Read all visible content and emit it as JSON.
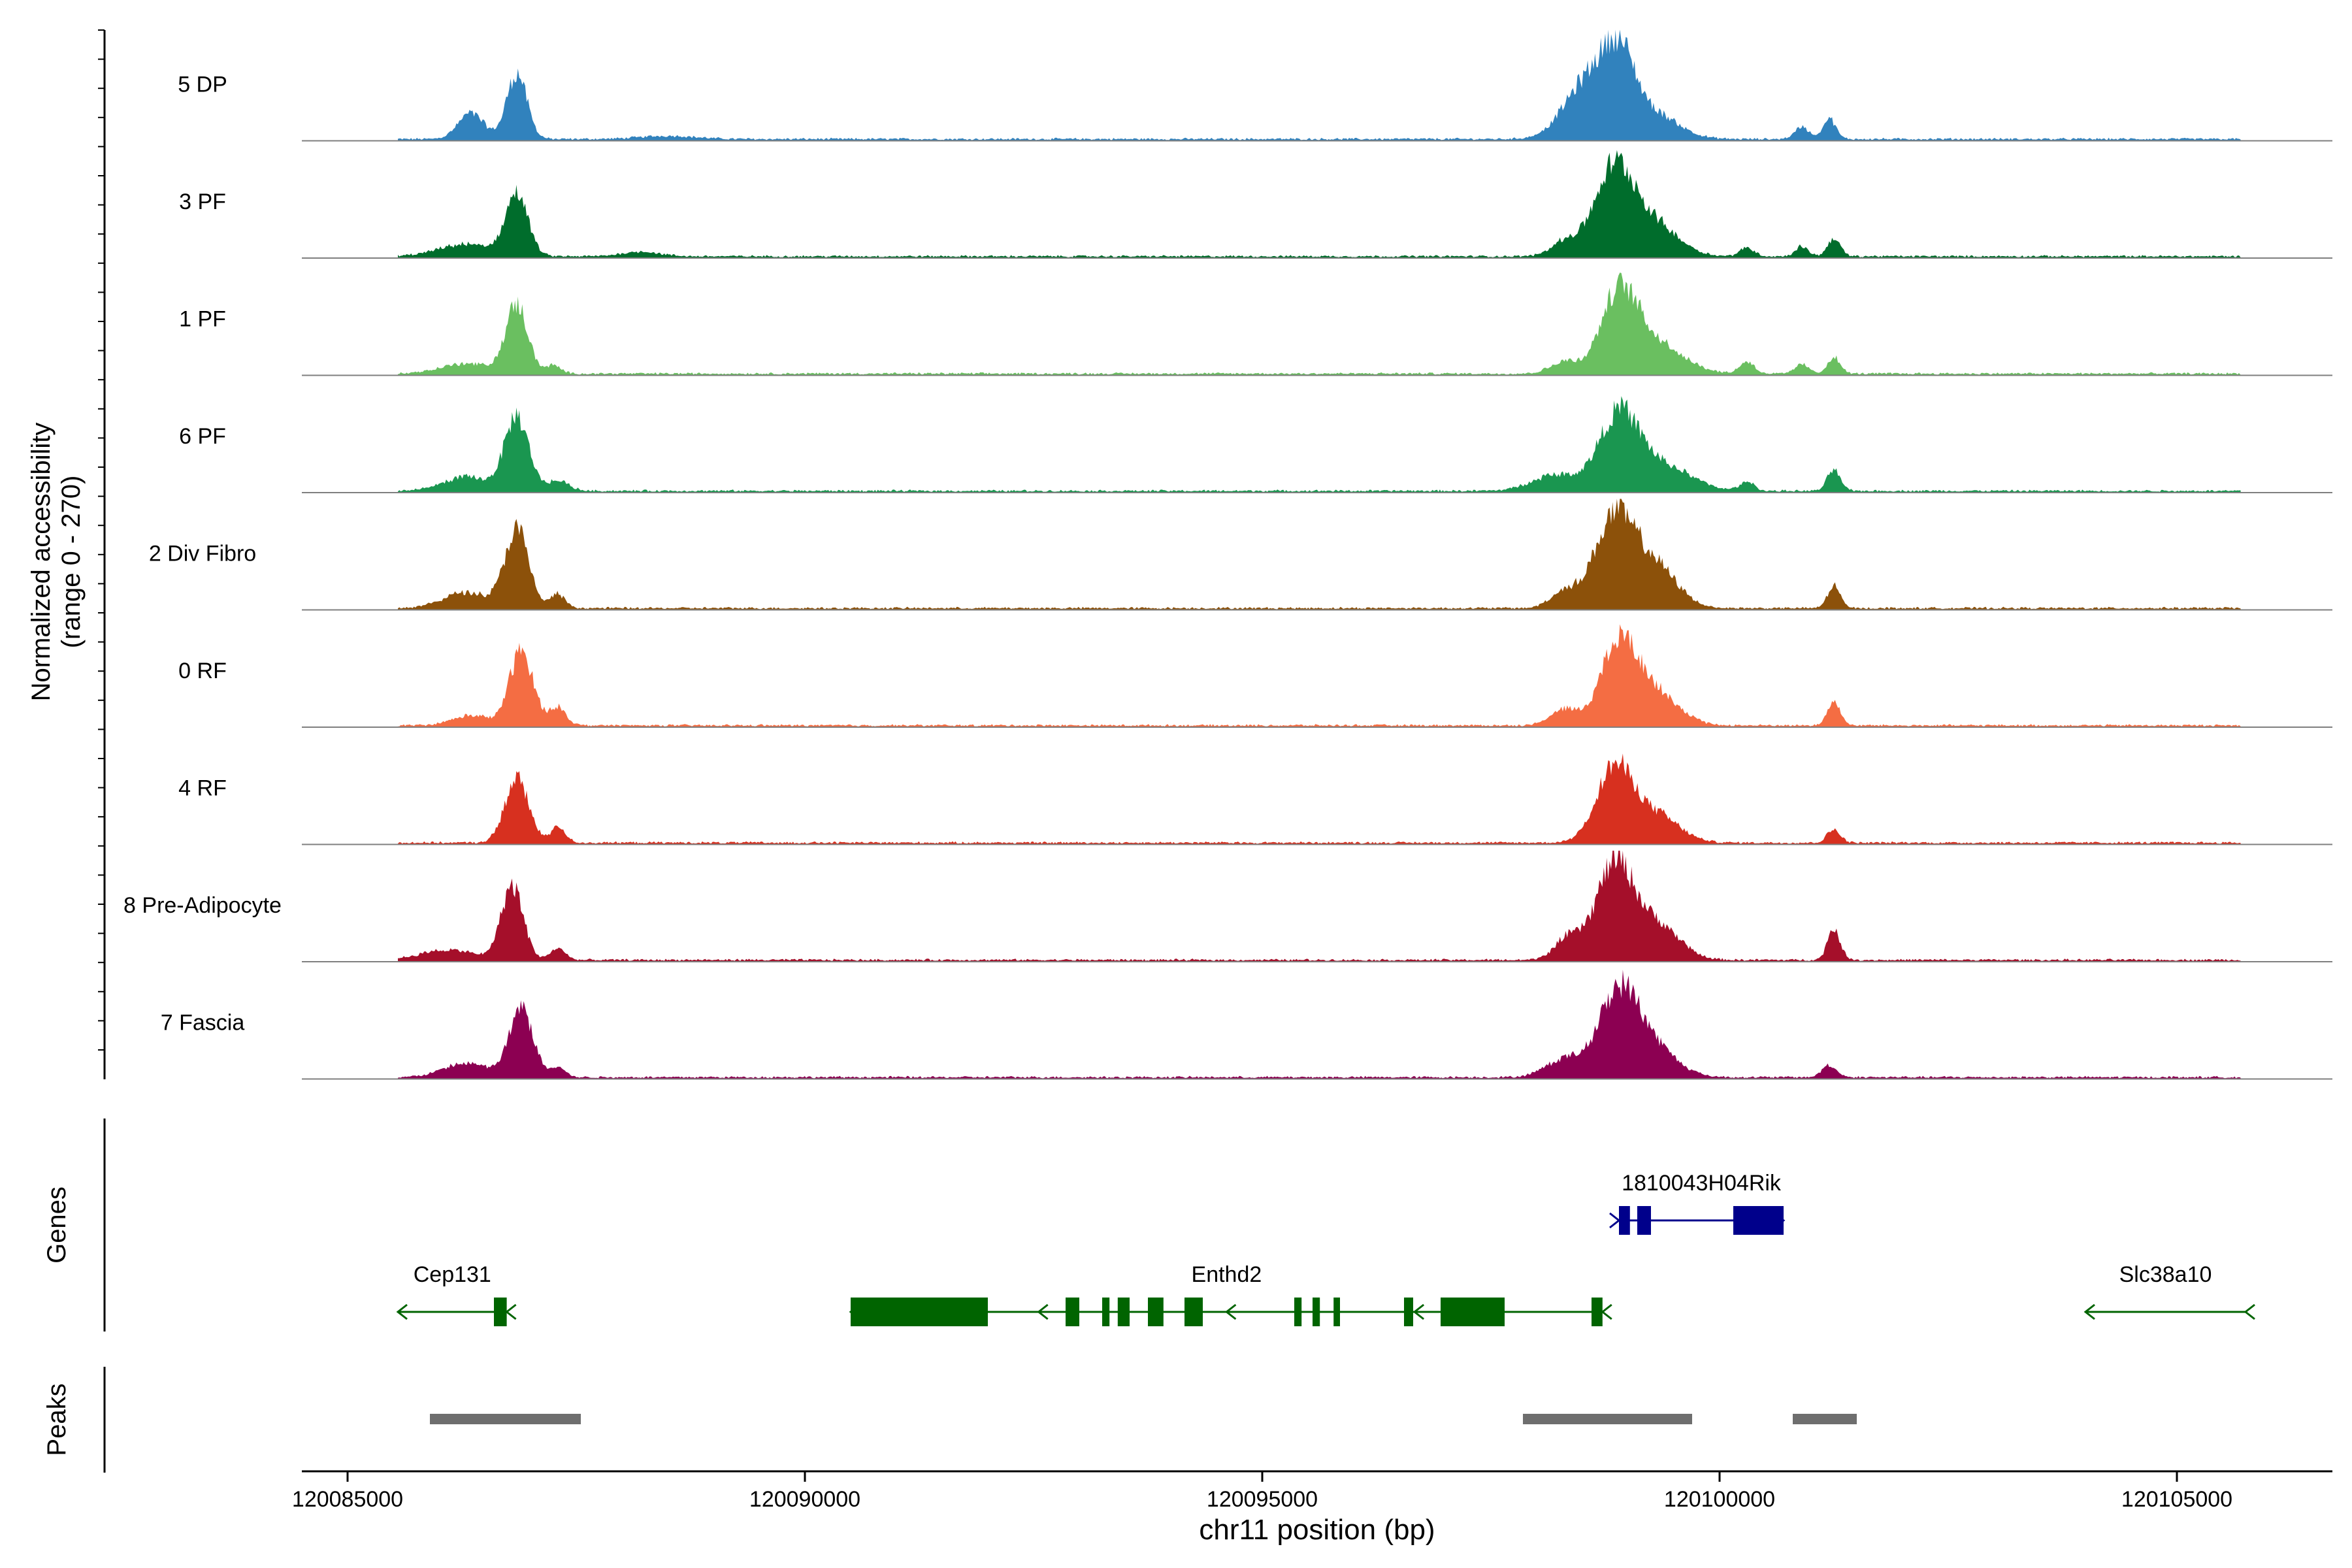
{
  "chart_data": {
    "type": "area",
    "title": "",
    "region": "chr11",
    "xlabel": "chr11 position (bp)",
    "ylabel_line1": "Normalized accessibility",
    "ylabel_line2": "(range 0 - 270)",
    "ylim": [
      0,
      270
    ],
    "xlim": [
      120084500,
      120106700
    ],
    "x_ticks": [
      "120085000",
      "120090000",
      "120095000",
      "120100000",
      "120105000"
    ],
    "tracks": [
      {
        "name": "5 DP",
        "color": "#3182bd",
        "peaks": [
          [
            120086350,
            65,
            140
          ],
          [
            120086850,
            165,
            110
          ],
          [
            120088500,
            8,
            300
          ],
          [
            120098550,
            140,
            250
          ],
          [
            120098900,
            185,
            180
          ],
          [
            120099300,
            60,
            260
          ],
          [
            120100900,
            30,
            80
          ],
          [
            120101200,
            50,
            70
          ]
        ]
      },
      {
        "name": "3 PF",
        "color": "#006d2c",
        "peaks": [
          [
            120086300,
            30,
            300
          ],
          [
            120086850,
            155,
            120
          ],
          [
            120088200,
            12,
            200
          ],
          [
            120098300,
            35,
            150
          ],
          [
            120098850,
            220,
            220
          ],
          [
            120099300,
            75,
            260
          ],
          [
            120100300,
            22,
            80
          ],
          [
            120100900,
            25,
            70
          ],
          [
            120101250,
            45,
            70
          ]
        ]
      },
      {
        "name": "1 PF",
        "color": "#6abf60",
        "peaks": [
          [
            120086300,
            25,
            280
          ],
          [
            120086850,
            170,
            120
          ],
          [
            120087250,
            20,
            80
          ],
          [
            120098300,
            30,
            150
          ],
          [
            120098900,
            190,
            200
          ],
          [
            120099300,
            75,
            300
          ],
          [
            120100300,
            30,
            80
          ],
          [
            120100900,
            25,
            70
          ],
          [
            120101250,
            40,
            70
          ]
        ]
      },
      {
        "name": "6 PF",
        "color": "#1a9650",
        "peaks": [
          [
            120086300,
            35,
            250
          ],
          [
            120086850,
            185,
            130
          ],
          [
            120087300,
            25,
            120
          ],
          [
            120098200,
            40,
            250
          ],
          [
            120098900,
            190,
            220
          ],
          [
            120099400,
            60,
            300
          ],
          [
            120100300,
            22,
            80
          ],
          [
            120101250,
            55,
            70
          ]
        ]
      },
      {
        "name": "2 Div Fibro",
        "color": "#8c510a",
        "peaks": [
          [
            120086300,
            40,
            250
          ],
          [
            120086850,
            195,
            130
          ],
          [
            120087300,
            35,
            80
          ],
          [
            120098300,
            40,
            150
          ],
          [
            120098850,
            225,
            220
          ],
          [
            120099300,
            100,
            240
          ],
          [
            120101250,
            55,
            70
          ]
        ]
      },
      {
        "name": "0 RF",
        "color": "#f46d43",
        "peaks": [
          [
            120086350,
            25,
            200
          ],
          [
            120086900,
            185,
            130
          ],
          [
            120087300,
            45,
            90
          ],
          [
            120098300,
            40,
            150
          ],
          [
            120098900,
            200,
            200
          ],
          [
            120099300,
            80,
            250
          ],
          [
            120101250,
            60,
            70
          ]
        ]
      },
      {
        "name": "4 RF",
        "color": "#d7301f",
        "peaks": [
          [
            120086850,
            160,
            130
          ],
          [
            120087300,
            40,
            80
          ],
          [
            120098850,
            185,
            200
          ],
          [
            120099300,
            70,
            250
          ],
          [
            120101250,
            35,
            70
          ]
        ]
      },
      {
        "name": "8 Pre-Adipocyte",
        "color": "#a50f2a",
        "peaks": [
          [
            120086100,
            25,
            300
          ],
          [
            120086800,
            185,
            120
          ],
          [
            120087300,
            30,
            80
          ],
          [
            120098350,
            55,
            150
          ],
          [
            120098850,
            235,
            200
          ],
          [
            120099300,
            90,
            250
          ],
          [
            120101250,
            75,
            70
          ]
        ]
      },
      {
        "name": "7 Fascia",
        "color": "#8c0052",
        "peaks": [
          [
            120086300,
            35,
            250
          ],
          [
            120086900,
            170,
            130
          ],
          [
            120087300,
            25,
            80
          ],
          [
            120098300,
            45,
            200
          ],
          [
            120098900,
            215,
            220
          ],
          [
            120099300,
            65,
            250
          ],
          [
            120101200,
            30,
            80
          ]
        ]
      }
    ],
    "genes_label": "Genes",
    "genes": [
      {
        "name": "Cep131",
        "color": "#006400",
        "strand": "-",
        "start": 120085550,
        "end": 120086740,
        "exons": [
          [
            120086600,
            120086740
          ]
        ]
      },
      {
        "name": "Enthd2",
        "color": "#006400",
        "strand": "-",
        "start": 120090500,
        "end": 120098720,
        "exons": [
          [
            120090500,
            120092000
          ],
          [
            120092850,
            120093000
          ],
          [
            120093250,
            120093330
          ],
          [
            120093420,
            120093550
          ],
          [
            120093750,
            120093920
          ],
          [
            120094150,
            120094350
          ],
          [
            120095350,
            120095430
          ],
          [
            120095550,
            120095630
          ],
          [
            120095780,
            120095850
          ],
          [
            120096550,
            120096650
          ],
          [
            120096950,
            120097650
          ],
          [
            120098600,
            120098720
          ]
        ]
      },
      {
        "name": "1810043H04Rik",
        "color": "#00008b",
        "strand": "+",
        "start": 120098900,
        "end": 120100700,
        "exons": [
          [
            120098900,
            120099020
          ],
          [
            120099100,
            120099250
          ],
          [
            120100150,
            120100700
          ]
        ]
      },
      {
        "name": "Slc38a10",
        "color": "#006400",
        "strand": "-",
        "start": 120104000,
        "end": 120105750,
        "exons": []
      }
    ],
    "peaks_label": "Peaks",
    "peak_regions": [
      [
        120085900,
        120087550
      ],
      [
        120097850,
        120099700
      ],
      [
        120100800,
        120101500
      ]
    ]
  }
}
